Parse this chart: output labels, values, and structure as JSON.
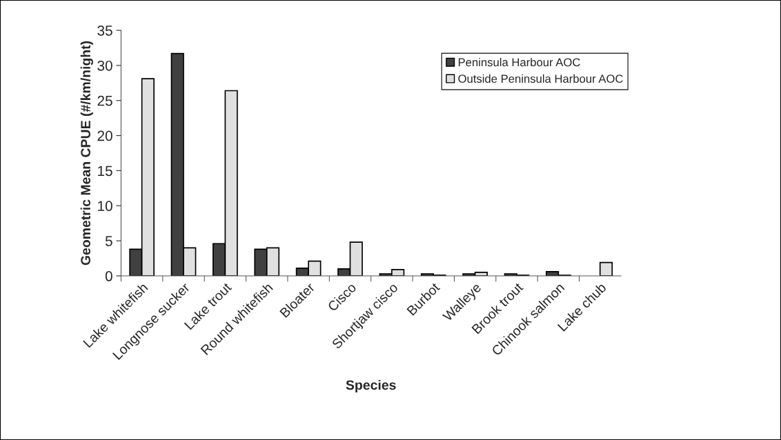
{
  "chart_data": {
    "type": "bar",
    "xlabel": "Species",
    "ylabel": "Geometric Mean CPUE (#/km/night)",
    "categories": [
      "Lake whitefish",
      "Longnose sucker",
      "Lake trout",
      "Round whitefish",
      "Bloater",
      "Cisco",
      "Shortjaw cisco",
      "Burbot",
      "Walleye",
      "Brook trout",
      "Chinook salmon",
      "Lake chub"
    ],
    "series": [
      {
        "name": "Peninsula Harbour AOC",
        "color": "#404040",
        "values": [
          3.8,
          31.7,
          4.6,
          3.8,
          1.1,
          1.0,
          0.3,
          0.3,
          0.3,
          0.3,
          0.6,
          null
        ]
      },
      {
        "name": "Outside Peninsula Harbour AOC",
        "color": "#e0e0e0",
        "values": [
          28.1,
          4.0,
          26.4,
          4.0,
          2.1,
          4.8,
          0.9,
          0.1,
          0.5,
          0.1,
          0.1,
          1.9
        ]
      }
    ],
    "ylim": [
      0,
      35
    ],
    "yticks": [
      0,
      5,
      10,
      15,
      20,
      25,
      30,
      35
    ],
    "grid": false,
    "legend": "top right"
  }
}
